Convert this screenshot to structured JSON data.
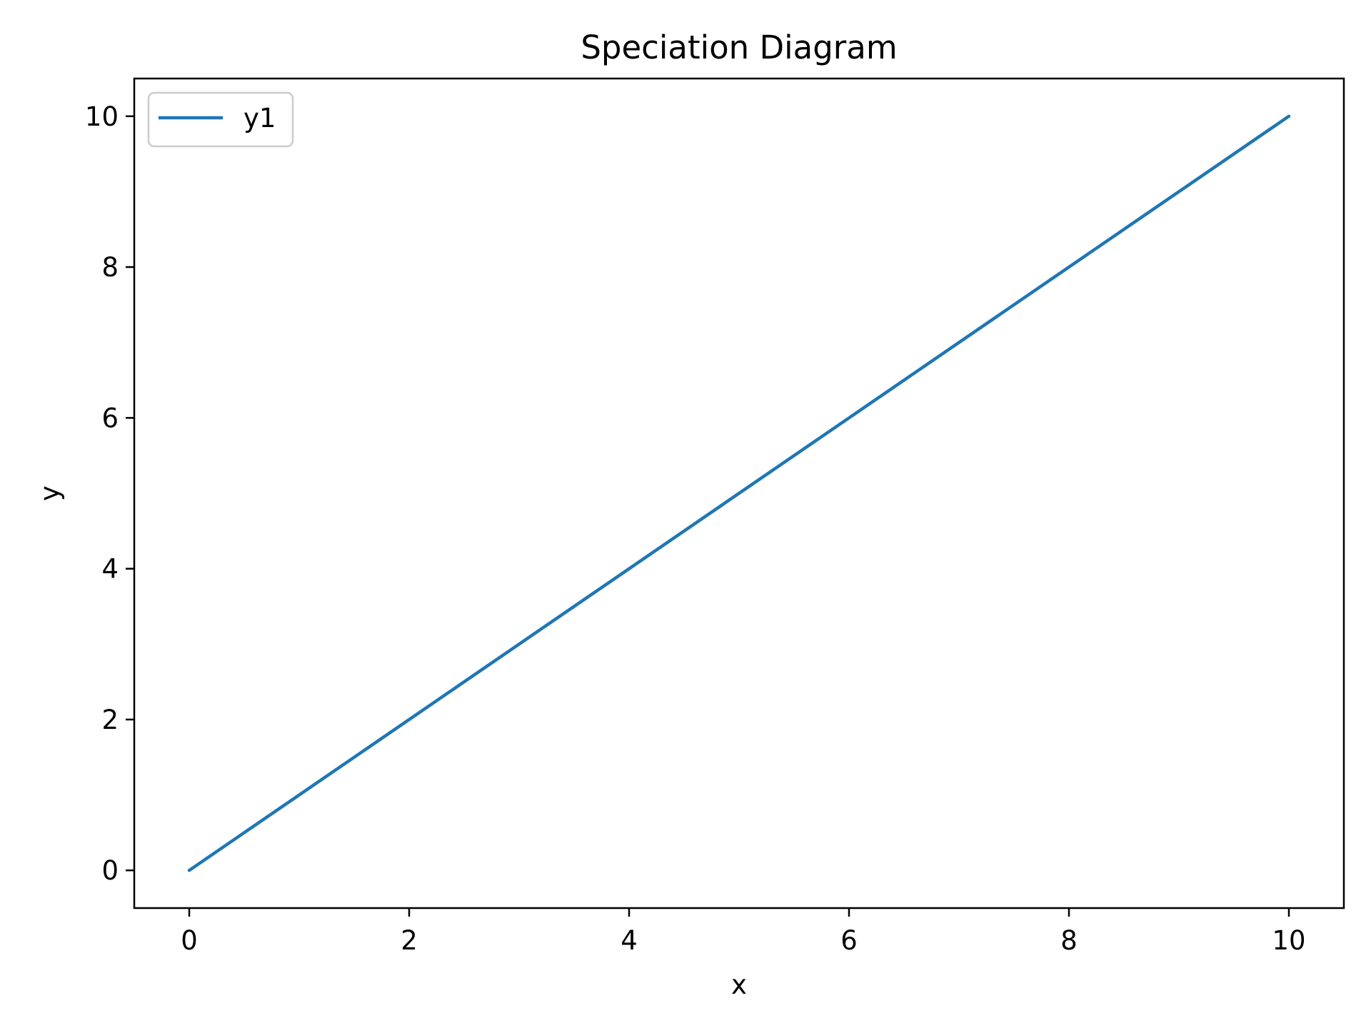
{
  "chart_data": {
    "type": "line",
    "title": "Speciation Diagram",
    "xlabel": "x",
    "ylabel": "y",
    "xlim": [
      -0.5,
      10.5
    ],
    "ylim": [
      -0.5,
      10.5
    ],
    "xticks": [
      0,
      2,
      4,
      6,
      8,
      10
    ],
    "yticks": [
      0,
      2,
      4,
      6,
      8,
      10
    ],
    "grid": false,
    "legend_position": "upper-left",
    "series": [
      {
        "name": "y1",
        "color": "#1f77b4",
        "x": [
          0,
          10
        ],
        "y": [
          0,
          10
        ]
      }
    ]
  }
}
